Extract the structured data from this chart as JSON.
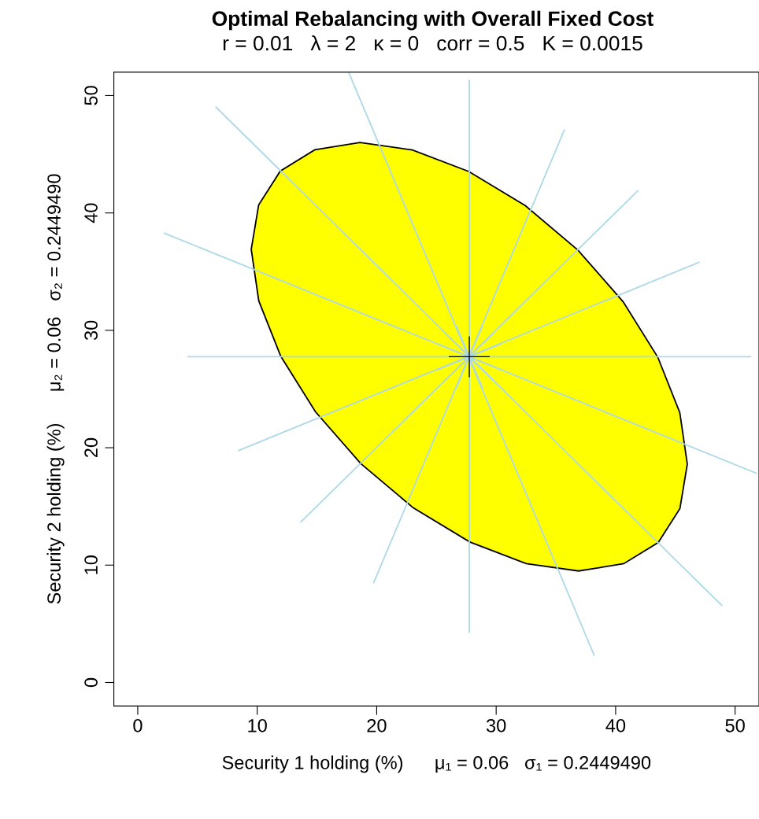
{
  "chart_data": {
    "type": "line",
    "title": "Optimal Rebalancing with Overall Fixed Cost",
    "subtitle": "r = 0.01   λ = 2   κ = 0   corr = 0.5   K = 0.0015",
    "xlabel": "Security 1 holding (%)      μ₁ = 0.06   σ₁ = 0.2449490",
    "ylabel": "Security 2 holding (%)      μ₂ = 0.06   σ₂ = 0.2449490",
    "xlim": [
      -2,
      52
    ],
    "ylim": [
      -2,
      52
    ],
    "xticks": [
      0,
      10,
      20,
      30,
      40,
      50
    ],
    "yticks": [
      0,
      10,
      20,
      30,
      40,
      50
    ],
    "grid": false,
    "series": [
      {
        "type": "area",
        "color": "#ffff00",
        "x": [
          43.57,
          45.38,
          46.0,
          45.37,
          43.53,
          40.63,
          36.84,
          32.43,
          27.71,
          22.99,
          18.6,
          14.82,
          11.93,
          10.12,
          9.5,
          10.13,
          11.97,
          14.87,
          18.66,
          23.07,
          27.79,
          32.51,
          36.9,
          40.68,
          43.57
        ],
        "values": [
          11.93,
          14.82,
          18.6,
          22.99,
          27.71,
          32.43,
          36.84,
          40.63,
          43.53,
          45.37,
          46.0,
          45.38,
          43.57,
          40.68,
          36.9,
          32.51,
          27.79,
          23.07,
          18.66,
          14.87,
          11.97,
          10.13,
          9.5,
          10.12,
          11.93
        ]
      },
      {
        "color": "#add8e6",
        "x": [
          27.75,
          27.75
        ],
        "values": [
          51.3,
          4.29
        ]
      },
      {
        "color": "#add8e6",
        "x": [
          4.2,
          51.3
        ],
        "values": [
          27.75,
          27.75
        ]
      },
      {
        "color": "#add8e6",
        "x": [
          17.65,
          38.19
        ],
        "values": [
          52.0,
          2.35
        ]
      },
      {
        "color": "#add8e6",
        "x": [
          35.7,
          19.75
        ],
        "values": [
          47.05,
          8.51
        ]
      },
      {
        "color": "#add8e6",
        "x": [
          41.86,
          13.65
        ],
        "values": [
          41.89,
          13.67
        ]
      },
      {
        "color": "#add8e6",
        "x": [
          46.98,
          8.46
        ],
        "values": [
          35.79,
          19.77
        ]
      },
      {
        "color": "#add8e6",
        "x": [
          51.77,
          2.23
        ],
        "values": [
          17.83,
          38.27
        ]
      },
      {
        "color": "#add8e6",
        "x": [
          48.88,
          6.56
        ],
        "values": [
          6.57,
          49.0
        ]
      },
      {
        "color": "#add8e6",
        "x": [
          30.34,
          25.16
        ],
        "values": [
          28.82,
          26.68
        ]
      },
      {
        "color": "#add8e6",
        "x": [
          29.73,
          25.77
        ],
        "values": [
          29.73,
          25.77
        ]
      },
      {
        "color": "#add8e6",
        "x": [
          28.82,
          26.68
        ],
        "values": [
          30.34,
          25.16
        ]
      },
      {
        "color": "#add8e6",
        "x": [
          26.68,
          28.82
        ],
        "values": [
          30.34,
          25.16
        ]
      },
      {
        "color": "#add8e6",
        "x": [
          25.77,
          29.73
        ],
        "values": [
          29.73,
          25.77
        ]
      },
      {
        "color": "#add8e6",
        "x": [
          25.16,
          30.34
        ],
        "values": [
          28.82,
          26.68
        ]
      },
      {
        "type": "scatter",
        "color": "#000000",
        "marker": "cross",
        "x": [
          27.75
        ],
        "values": [
          27.75
        ]
      }
    ]
  }
}
